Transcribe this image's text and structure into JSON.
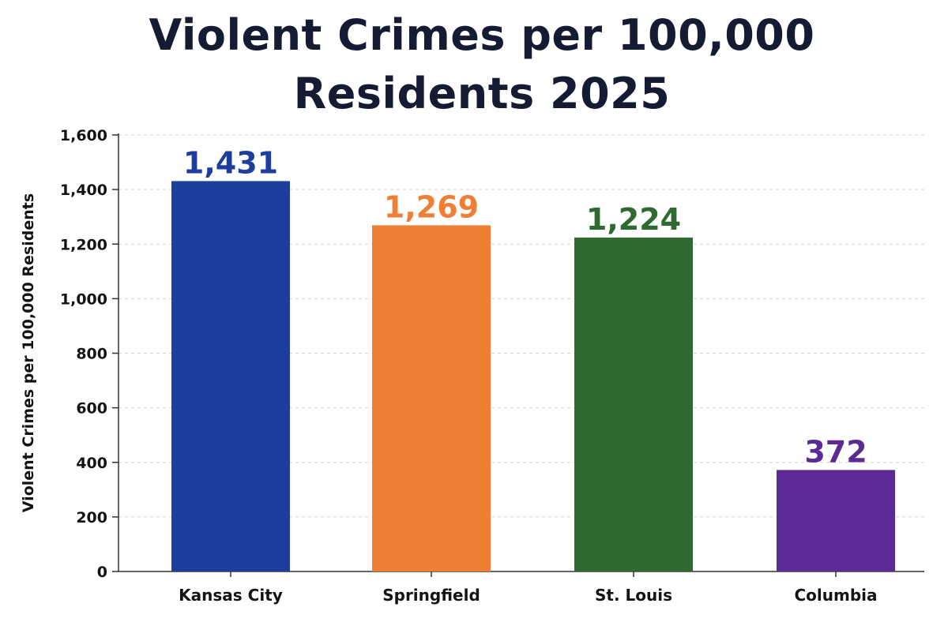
{
  "chart_data": {
    "type": "bar",
    "title": "Violent Crimes per 100,000 Residents 2025",
    "xlabel": "",
    "ylabel": "Violent Crimes per 100,000 Residents",
    "categories": [
      "Kansas City",
      "Springfield",
      "St. Louis",
      "Columbia"
    ],
    "values": [
      1431,
      1269,
      1224,
      372
    ],
    "value_labels": [
      "1,431",
      "1,269",
      "1,224",
      "372"
    ],
    "colors": [
      "#1e3e9e",
      "#ee7f34",
      "#2f6b30",
      "#5b2a95"
    ],
    "ylim": [
      0,
      1600
    ],
    "yticks": [
      0,
      200,
      400,
      600,
      800,
      1000,
      1200,
      1400,
      1600
    ],
    "ytick_labels": [
      "0",
      "200",
      "400",
      "600",
      "800",
      "1,000",
      "1,200",
      "1,400",
      "1,600"
    ],
    "grid": true,
    "legend": "none"
  }
}
